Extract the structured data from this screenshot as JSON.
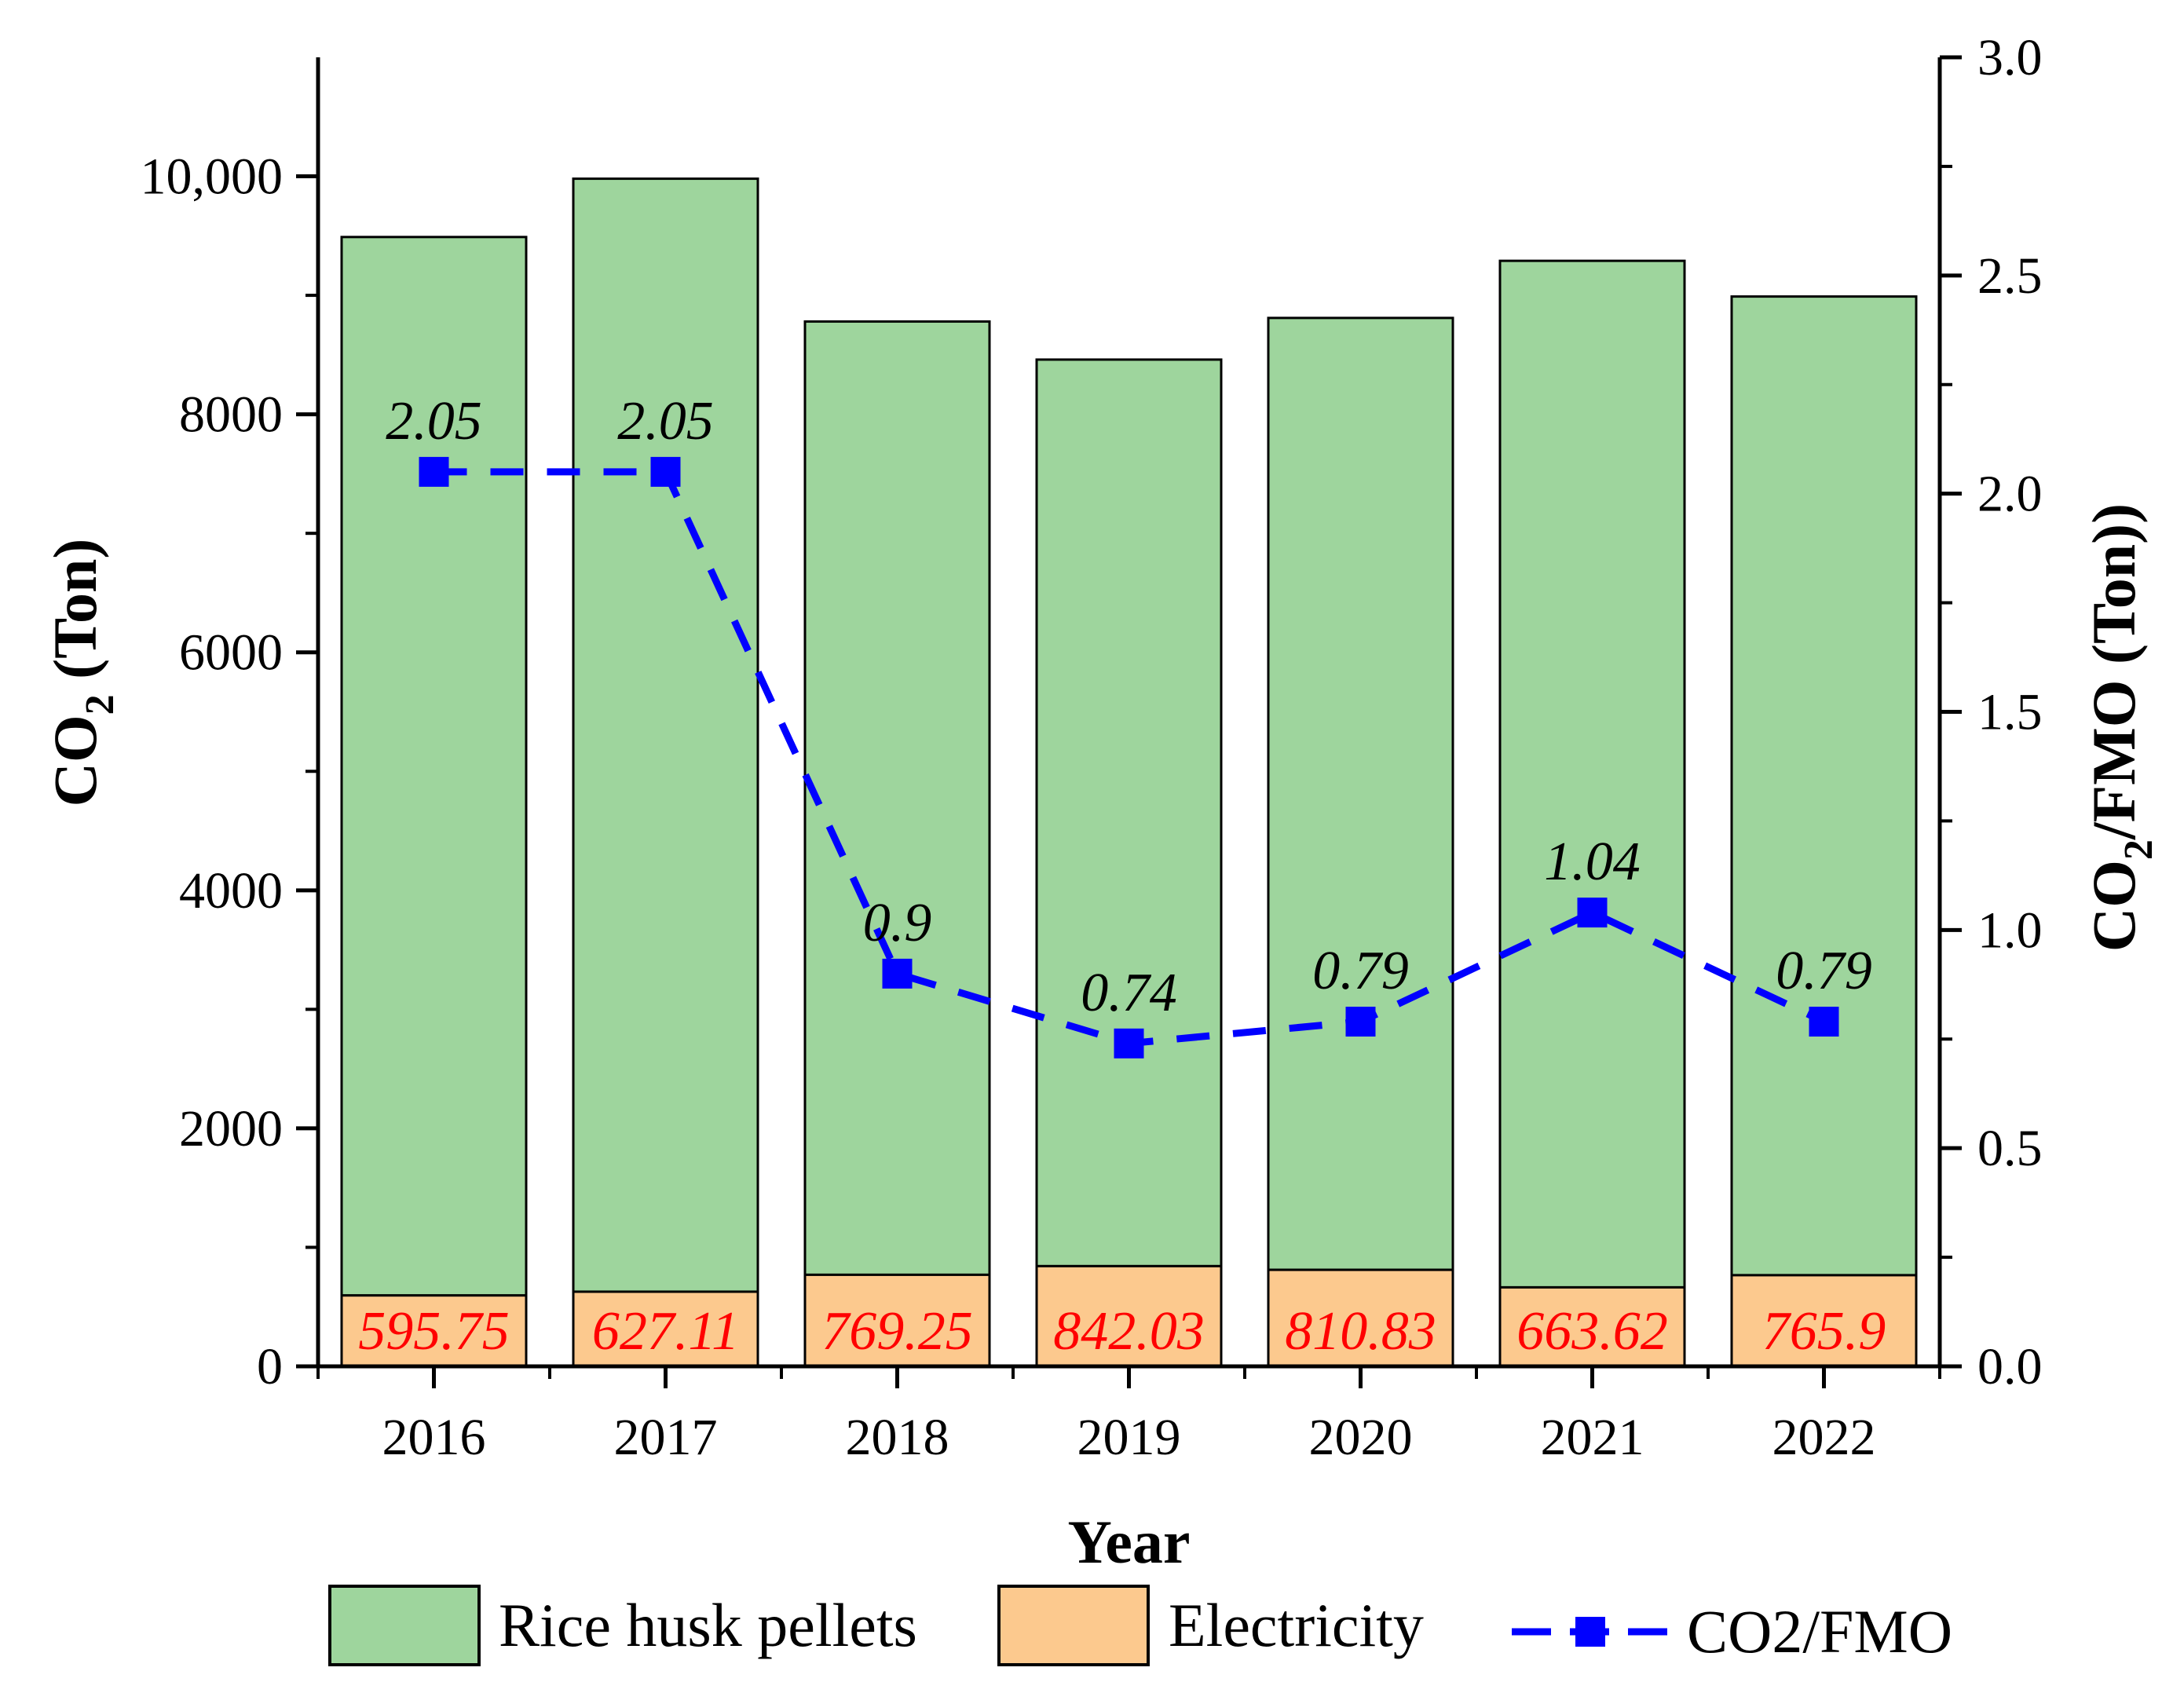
{
  "chart_data": {
    "type": "bar",
    "stacked": true,
    "categories": [
      "2016",
      "2017",
      "2018",
      "2019",
      "2020",
      "2021",
      "2022"
    ],
    "series": [
      {
        "name": "Electricity",
        "color": "#fcc98e",
        "values": [
          595.75,
          627.11,
          769.25,
          842.03,
          810.83,
          663.62,
          765.9
        ],
        "labels": [
          "595.75",
          "627.11",
          "769.25",
          "842.03",
          "810.83",
          "663.62",
          "765.9"
        ]
      },
      {
        "name": "Rice husk pellets",
        "color": "#9ed59d",
        "values": [
          8894.25,
          9352.89,
          8010.75,
          7617.97,
          7999.17,
          8626.38,
          8224.1
        ]
      },
      {
        "name": "CO2/FMO",
        "type": "line",
        "axis": "right",
        "color": "#0000ff",
        "values": [
          2.05,
          2.05,
          0.9,
          0.74,
          0.79,
          1.04,
          0.79
        ],
        "labels": [
          "2.05",
          "2.05",
          "0.9",
          "0.74",
          "0.79",
          "1.04",
          "0.79"
        ]
      }
    ],
    "xlabel": "Year",
    "ylabel": {
      "main": "CO",
      "sub": "2",
      "rest": " (Ton)"
    },
    "y2label": {
      "main": "CO",
      "sub": "2",
      "rest": "/FMO (Ton))"
    },
    "ylim": [
      0,
      11000
    ],
    "y2lim": [
      0,
      3.0
    ],
    "yticks": [
      {
        "value": 0,
        "label": "0"
      },
      {
        "value": 2000,
        "label": "2000"
      },
      {
        "value": 4000,
        "label": "4000"
      },
      {
        "value": 6000,
        "label": "6000"
      },
      {
        "value": 8000,
        "label": "8000"
      },
      {
        "value": 10000,
        "label": "10,000"
      }
    ],
    "y2ticks": [
      {
        "value": 0,
        "label": "0.0"
      },
      {
        "value": 0.5,
        "label": "0.5"
      },
      {
        "value": 1.0,
        "label": "1.0"
      },
      {
        "value": 1.5,
        "label": "1.5"
      },
      {
        "value": 2.0,
        "label": "2.0"
      },
      {
        "value": 2.5,
        "label": "2.5"
      },
      {
        "value": 3.0,
        "label": "3.0"
      }
    ],
    "legend": {
      "placement": "bottom",
      "items": [
        "Rice husk pellets",
        "Electricity",
        "CO2/FMO"
      ]
    }
  }
}
